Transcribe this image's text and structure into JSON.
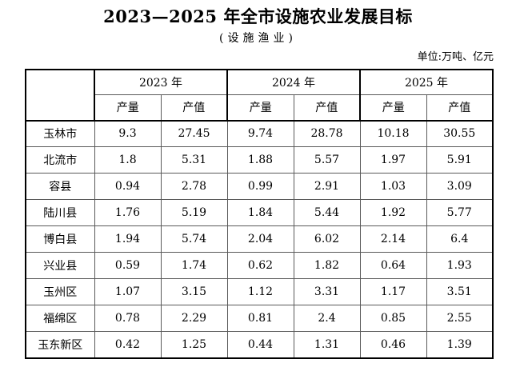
{
  "page": {
    "title": "2023—2025 年全市设施农业发展目标",
    "subtitle": "(设施渔业)",
    "unit_note": "单位:万吨、亿元"
  },
  "table": {
    "corner_label": "",
    "year_groups": [
      {
        "label": "2023 年"
      },
      {
        "label": "2024 年"
      },
      {
        "label": "2025 年"
      }
    ],
    "sub_headers": [
      "产量",
      "产值",
      "产量",
      "产值",
      "产量",
      "产值"
    ],
    "rows": [
      {
        "region": "玉林市",
        "values": [
          "9.3",
          "27.45",
          "9.74",
          "28.78",
          "10.18",
          "30.55"
        ]
      },
      {
        "region": "北流市",
        "values": [
          "1.8",
          "5.31",
          "1.88",
          "5.57",
          "1.97",
          "5.91"
        ]
      },
      {
        "region": "容县",
        "values": [
          "0.94",
          "2.78",
          "0.99",
          "2.91",
          "1.03",
          "3.09"
        ]
      },
      {
        "region": "陆川县",
        "values": [
          "1.76",
          "5.19",
          "1.84",
          "5.44",
          "1.92",
          "5.77"
        ]
      },
      {
        "region": "博白县",
        "values": [
          "1.94",
          "5.74",
          "2.04",
          "6.02",
          "2.14",
          "6.4"
        ]
      },
      {
        "region": "兴业县",
        "values": [
          "0.59",
          "1.74",
          "0.62",
          "1.82",
          "0.64",
          "1.93"
        ]
      },
      {
        "region": "玉州区",
        "values": [
          "1.07",
          "3.15",
          "1.12",
          "3.31",
          "1.17",
          "3.51"
        ]
      },
      {
        "region": "福绵区",
        "values": [
          "0.78",
          "2.29",
          "0.81",
          "2.4",
          "0.85",
          "2.55"
        ]
      },
      {
        "region": "玉东新区",
        "values": [
          "0.42",
          "1.25",
          "0.44",
          "1.31",
          "0.46",
          "1.39"
        ]
      }
    ],
    "colors": {
      "border_strong": "#000000",
      "border_light": "#5a5a5a",
      "text": "#000000",
      "background": "#ffffff"
    }
  }
}
